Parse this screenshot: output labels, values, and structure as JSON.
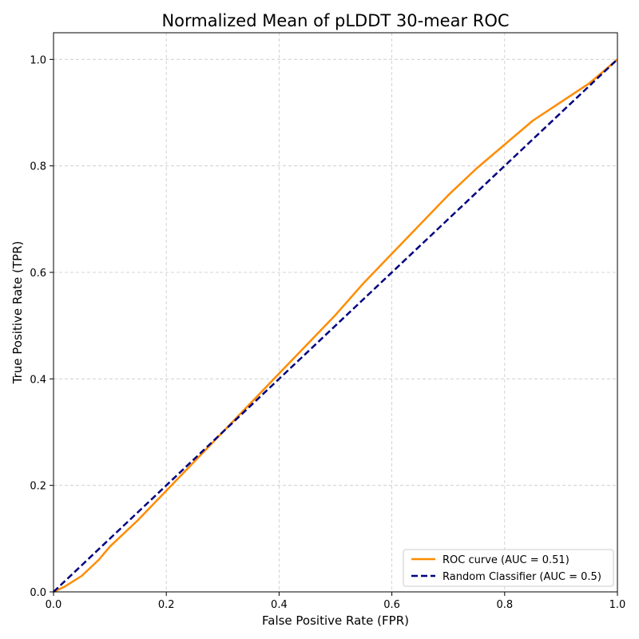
{
  "chart_data": {
    "type": "line",
    "title": "Normalized Mean of pLDDT 30-mear ROC",
    "xlabel": "False Positive Rate (FPR)",
    "ylabel": "True Positive Rate (TPR)",
    "xlim": [
      0.0,
      1.0
    ],
    "ylim": [
      0.0,
      1.05
    ],
    "xticks": [
      "0.0",
      "0.2",
      "0.4",
      "0.6",
      "0.8",
      "1.0"
    ],
    "yticks": [
      "0.0",
      "0.2",
      "0.4",
      "0.6",
      "0.8",
      "1.0"
    ],
    "grid": true,
    "legend_position": "lower-right",
    "series": [
      {
        "name": "ROC curve (AUC = 0.51)",
        "color": "#ff8c00",
        "style": "solid",
        "x": [
          0.0,
          0.02,
          0.05,
          0.08,
          0.1,
          0.15,
          0.2,
          0.25,
          0.3,
          0.35,
          0.4,
          0.45,
          0.5,
          0.55,
          0.6,
          0.65,
          0.7,
          0.75,
          0.8,
          0.85,
          0.9,
          0.95,
          1.0
        ],
        "y": [
          0.0,
          0.01,
          0.03,
          0.06,
          0.085,
          0.135,
          0.19,
          0.245,
          0.3,
          0.355,
          0.41,
          0.465,
          0.52,
          0.58,
          0.635,
          0.69,
          0.745,
          0.795,
          0.84,
          0.885,
          0.92,
          0.955,
          1.0
        ]
      },
      {
        "name": "Random Classifier (AUC = 0.5)",
        "color": "#000080",
        "style": "dashed",
        "x": [
          0.0,
          1.0
        ],
        "y": [
          0.0,
          1.0
        ]
      }
    ]
  }
}
